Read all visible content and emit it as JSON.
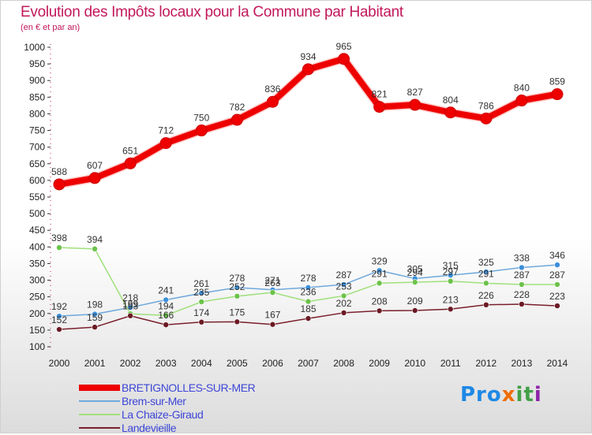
{
  "page": {
    "title": "Evolution des Impôts locaux pour la Commune par Habitant",
    "subtitle": "(en € et par an)"
  },
  "logo": {
    "text": "Proxiti",
    "part1": "Pro",
    "part2": "x",
    "part3": "it",
    "part4": "i"
  },
  "chart_data": {
    "type": "line",
    "title": "Evolution des Impôts locaux pour la Commune par Habitant",
    "subtitle": "(en € et par an)",
    "xlabel": "",
    "ylabel": "",
    "ylim": [
      100,
      1000
    ],
    "ytick_step": 50,
    "grid": false,
    "legend_position": "bottom-left",
    "x": [
      "2000",
      "2001",
      "2002",
      "2003",
      "2004",
      "2005",
      "2006",
      "2007",
      "2008",
      "2009",
      "2010",
      "2011",
      "2012",
      "2013",
      "2014"
    ],
    "series": [
      {
        "name": "BRETIGNOLLES-SUR-MER",
        "color": "#ee0000",
        "width": 8,
        "marker": 7,
        "values": [
          588,
          607,
          651,
          712,
          750,
          782,
          836,
          934,
          965,
          821,
          827,
          804,
          786,
          840,
          859
        ]
      },
      {
        "name": "Brem-sur-Mer",
        "color": "#6fa8dc",
        "dot": "#3c8fd9",
        "width": 1.5,
        "marker": 3.5,
        "values": [
          192,
          198,
          218,
          241,
          261,
          278,
          271,
          278,
          287,
          329,
          305,
          315,
          325,
          338,
          346
        ]
      },
      {
        "name": "La Chaize-Giraud",
        "color": "#9fe07a",
        "dot": "#6cc24a",
        "width": 1.5,
        "marker": 3.5,
        "values": [
          398,
          394,
          199,
          194,
          235,
          252,
          263,
          236,
          253,
          291,
          294,
          297,
          291,
          287,
          287
        ]
      },
      {
        "name": "Landevieille",
        "color": "#7a1f2b",
        "dot": "#6b1a24",
        "width": 1.5,
        "marker": 3.5,
        "values": [
          152,
          159,
          193,
          166,
          174,
          175,
          167,
          185,
          202,
          208,
          209,
          213,
          226,
          228,
          223
        ]
      }
    ]
  }
}
